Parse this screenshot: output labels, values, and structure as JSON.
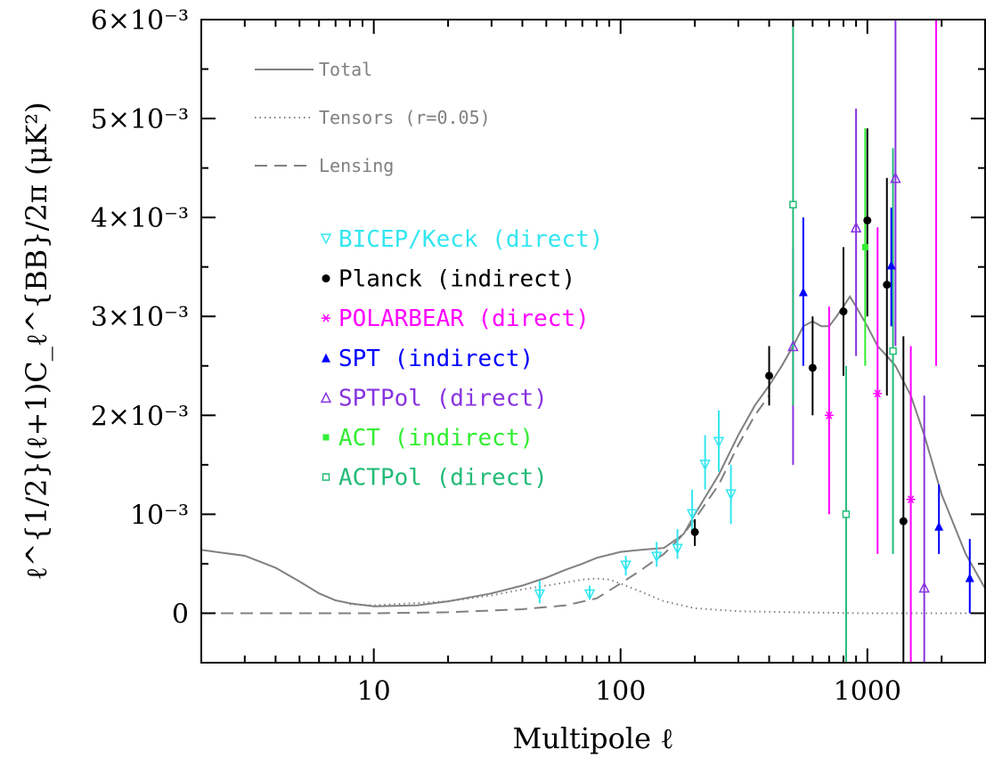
{
  "chart_data": {
    "type": "scatter",
    "xlabel": "Multipole ℓ",
    "ylabel": "ℓ^{1/2}(ℓ+1)C_ℓ^{BB}/2π (μK²)",
    "xscale": "log",
    "xlim": [
      2,
      3000
    ],
    "ylim": [
      -0.0005,
      0.006
    ],
    "x_tick_labels": [
      "10",
      "100",
      "1000"
    ],
    "y_tick_labels": [
      "0",
      "10⁻³",
      "2×10⁻³",
      "3×10⁻³",
      "4×10⁻³",
      "5×10⁻³",
      "6×10⁻³"
    ],
    "grid": false,
    "legend_placement": "top-left",
    "curves": [
      {
        "name": "Total",
        "color": "#808080",
        "dash": "solid",
        "points": [
          [
            2,
            0.00064
          ],
          [
            3,
            0.00058
          ],
          [
            4,
            0.00046
          ],
          [
            5,
            0.00032
          ],
          [
            6,
            0.0002
          ],
          [
            7,
            0.00013
          ],
          [
            8,
            0.0001
          ],
          [
            10,
            7e-05
          ],
          [
            15,
            8e-05
          ],
          [
            20,
            0.00012
          ],
          [
            30,
            0.0002
          ],
          [
            40,
            0.00028
          ],
          [
            50,
            0.00036
          ],
          [
            60,
            0.00044
          ],
          [
            70,
            0.0005
          ],
          [
            80,
            0.00056
          ],
          [
            100,
            0.00062
          ],
          [
            120,
            0.00064
          ],
          [
            150,
            0.00066
          ],
          [
            180,
            0.0008
          ],
          [
            200,
            0.001
          ],
          [
            250,
            0.0014
          ],
          [
            300,
            0.0018
          ],
          [
            350,
            0.0021
          ],
          [
            400,
            0.0023
          ],
          [
            450,
            0.0025
          ],
          [
            500,
            0.0027
          ],
          [
            550,
            0.0029
          ],
          [
            600,
            0.00295
          ],
          [
            650,
            0.0029
          ],
          [
            700,
            0.0029
          ],
          [
            750,
            0.003
          ],
          [
            800,
            0.0031
          ],
          [
            850,
            0.0032
          ],
          [
            900,
            0.0031
          ],
          [
            1000,
            0.0029
          ],
          [
            1100,
            0.0027
          ],
          [
            1200,
            0.0026
          ],
          [
            1300,
            0.0025
          ],
          [
            1500,
            0.0022
          ],
          [
            1700,
            0.0018
          ],
          [
            2000,
            0.0012
          ],
          [
            2500,
            0.0006
          ],
          [
            3000,
            0.00025
          ]
        ]
      },
      {
        "name": "Tensors (r=0.05)",
        "color": "#808080",
        "dash": "dotted",
        "points": [
          [
            8,
            9e-05
          ],
          [
            10,
            8e-05
          ],
          [
            20,
            0.00012
          ],
          [
            30,
            0.00018
          ],
          [
            40,
            0.00024
          ],
          [
            50,
            0.00028
          ],
          [
            60,
            0.00031
          ],
          [
            70,
            0.00034
          ],
          [
            80,
            0.00035
          ],
          [
            90,
            0.00034
          ],
          [
            100,
            0.0003
          ],
          [
            120,
            0.00022
          ],
          [
            150,
            0.00012
          ],
          [
            200,
            5e-05
          ],
          [
            300,
            2e-05
          ],
          [
            500,
            1e-05
          ],
          [
            1000,
            0
          ],
          [
            3000,
            0
          ]
        ]
      },
      {
        "name": "Lensing",
        "color": "#808080",
        "dash": "dashed",
        "points": [
          [
            2,
            0
          ],
          [
            10,
            0
          ],
          [
            20,
            1e-05
          ],
          [
            40,
            4e-05
          ],
          [
            60,
            8e-05
          ],
          [
            80,
            0.00015
          ],
          [
            100,
            0.0003
          ],
          [
            120,
            0.00043
          ],
          [
            150,
            0.0006
          ],
          [
            180,
            0.0008
          ],
          [
            200,
            0.00095
          ],
          [
            250,
            0.0013
          ],
          [
            300,
            0.0017
          ],
          [
            350,
            0.002
          ],
          [
            400,
            0.0022
          ]
        ]
      }
    ],
    "series": [
      {
        "name": "BICEP/Keck (direct)",
        "color": "#33e6f0",
        "marker": "triangle-down-open",
        "points": [
          {
            "x": 47,
            "y": 0.00019,
            "lo": 0.0001,
            "hi": 0.00033
          },
          {
            "x": 75,
            "y": 0.00019,
            "lo": 0.00014,
            "hi": 0.00028
          },
          {
            "x": 105,
            "y": 0.00048,
            "lo": 0.00038,
            "hi": 0.00058
          },
          {
            "x": 140,
            "y": 0.00057,
            "lo": 0.00047,
            "hi": 0.00072
          },
          {
            "x": 170,
            "y": 0.00065,
            "lo": 0.00055,
            "hi": 0.00085
          },
          {
            "x": 195,
            "y": 0.001,
            "lo": 0.00082,
            "hi": 0.00125
          },
          {
            "x": 220,
            "y": 0.0015,
            "lo": 0.00125,
            "hi": 0.0018
          },
          {
            "x": 250,
            "y": 0.00173,
            "lo": 0.00143,
            "hi": 0.00205
          },
          {
            "x": 280,
            "y": 0.0012,
            "lo": 0.0009,
            "hi": 0.0015
          }
        ]
      },
      {
        "name": "Planck (indirect)",
        "color": "#000000",
        "marker": "circle-filled",
        "points": [
          {
            "x": 200,
            "y": 0.00082,
            "lo": 0.00068,
            "hi": 0.00095
          },
          {
            "x": 400,
            "y": 0.0024,
            "lo": 0.0021,
            "hi": 0.0027
          },
          {
            "x": 600,
            "y": 0.00248,
            "lo": 0.002,
            "hi": 0.003
          },
          {
            "x": 800,
            "y": 0.00305,
            "lo": 0.0024,
            "hi": 0.0037
          },
          {
            "x": 1000,
            "y": 0.00397,
            "lo": 0.003,
            "hi": 0.0049
          },
          {
            "x": 1200,
            "y": 0.00332,
            "lo": 0.0022,
            "hi": 0.0044
          },
          {
            "x": 1400,
            "y": 0.00093,
            "lo": -0.0005,
            "hi": 0.0028
          }
        ]
      },
      {
        "name": "POLARBEAR (direct)",
        "color": "#ff00ff",
        "marker": "asterisk",
        "points": [
          {
            "x": 700,
            "y": 0.002,
            "lo": 0.001,
            "hi": 0.0031
          },
          {
            "x": 1100,
            "y": 0.00222,
            "lo": 0.0006,
            "hi": 0.0039
          },
          {
            "x": 1500,
            "y": 0.00115,
            "lo": -0.0005,
            "hi": 0.0027
          },
          {
            "x": 1900,
            "y": 0.0062,
            "lo": 0.0025,
            "hi": 0.006
          }
        ]
      },
      {
        "name": "SPT (indirect)",
        "color": "#0000ff",
        "marker": "triangle-up-filled",
        "points": [
          {
            "x": 550,
            "y": 0.00325,
            "lo": 0.0025,
            "hi": 0.004
          },
          {
            "x": 1250,
            "y": 0.00352,
            "lo": 0.0029,
            "hi": 0.0041
          },
          {
            "x": 1950,
            "y": 0.00088,
            "lo": 0.0006,
            "hi": 0.0013
          },
          {
            "x": 2600,
            "y": 0.00036,
            "lo": 0,
            "hi": 0.00075
          }
        ]
      },
      {
        "name": "SPTPol (direct)",
        "color": "#8833e0",
        "marker": "triangle-up-open",
        "points": [
          {
            "x": 500,
            "y": 0.0027,
            "lo": 0.0015,
            "hi": 0.0037
          },
          {
            "x": 900,
            "y": 0.0039,
            "lo": 0.0026,
            "hi": 0.0051
          },
          {
            "x": 1300,
            "y": 0.0044,
            "lo": 0.0027,
            "hi": 0.0061
          },
          {
            "x": 1700,
            "y": 0.00026,
            "lo": -0.0005,
            "hi": 0.0022
          }
        ]
      },
      {
        "name": "ACT (indirect)",
        "color": "#33ee33",
        "marker": "square-filled",
        "points": [
          {
            "x": 980,
            "y": 0.0037,
            "lo": 0.0025,
            "hi": 0.0049
          }
        ]
      },
      {
        "name": "ACTPol (direct)",
        "color": "#22bb77",
        "marker": "square-open",
        "points": [
          {
            "x": 500,
            "y": 0.00413,
            "lo": 0.0021,
            "hi": 0.0061
          },
          {
            "x": 820,
            "y": 0.001,
            "lo": -0.0005,
            "hi": 0.0025
          },
          {
            "x": 1270,
            "y": 0.00265,
            "lo": 0.0006,
            "hi": 0.0047
          }
        ]
      }
    ]
  },
  "legend": {
    "lines": [
      {
        "label": "Total",
        "dash": "solid"
      },
      {
        "label": "Tensors (r=0.05)",
        "dash": "dotted"
      },
      {
        "label": "Lensing",
        "dash": "dashed"
      }
    ],
    "points": [
      {
        "label": "BICEP/Keck (direct)",
        "color": "#33e6f0",
        "marker": "triangle-down-open"
      },
      {
        "label": "Planck (indirect)",
        "color": "#000000",
        "marker": "circle-filled"
      },
      {
        "label": "POLARBEAR (direct)",
        "color": "#ff00ff",
        "marker": "asterisk"
      },
      {
        "label": "SPT (indirect)",
        "color": "#0000ff",
        "marker": "triangle-up-filled"
      },
      {
        "label": "SPTPol (direct)",
        "color": "#8833e0",
        "marker": "triangle-up-open"
      },
      {
        "label": "ACT (indirect)",
        "color": "#33ee33",
        "marker": "square-filled"
      },
      {
        "label": "ACTPol (direct)",
        "color": "#22bb77",
        "marker": "square-open"
      }
    ]
  }
}
